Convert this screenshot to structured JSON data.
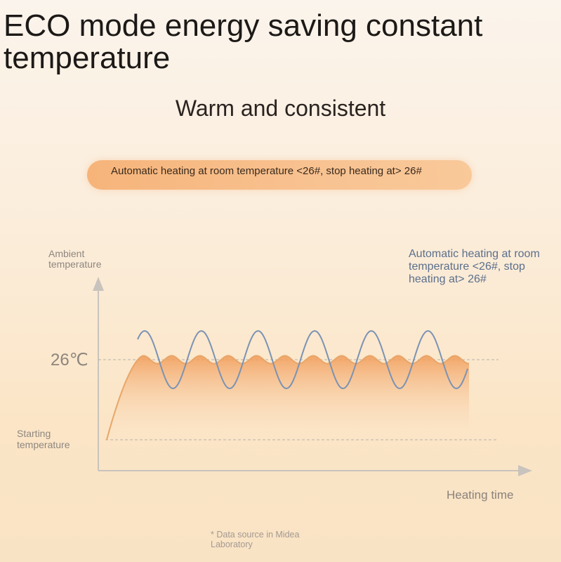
{
  "headline": "ECO mode energy saving constant temperature",
  "subhead": "Warm and consistent",
  "banner": {
    "text": "Automatic heating at room temperature <26#, stop heating at> 26#"
  },
  "annotation": "Automatic heating at room temperature <26#, stop heating at> 26#",
  "footnote": "* Data source in Midea Laboratory",
  "colors": {
    "eco_line": "#e8a66a",
    "eco_fill": "#f3a466",
    "comparison_line": "#7b93b3",
    "axis": "#c9c3bd",
    "dashed": "#b9b2ab"
  },
  "chart_data": {
    "type": "line",
    "title": "",
    "xlabel": "Heating time",
    "ylabel": "Ambient temperature",
    "y_tick_labels": {
      "setpoint": "26℃",
      "start": "Starting temperature"
    },
    "reference_lines": [
      "setpoint",
      "start"
    ],
    "series": [
      {
        "key": "eco",
        "style": "orange, filled below",
        "description_points": "rise from starting temperature, then small oscillation around 26℃",
        "rise": true,
        "oscillation_cycles": 6,
        "amplitude_relative": 0.25
      },
      {
        "key": "comparison",
        "style": "blue",
        "description_points": "large oscillation around 26℃",
        "rise": false,
        "oscillation_cycles": 6,
        "amplitude_relative": 1.0
      }
    ],
    "grid": false,
    "legend": "none"
  }
}
